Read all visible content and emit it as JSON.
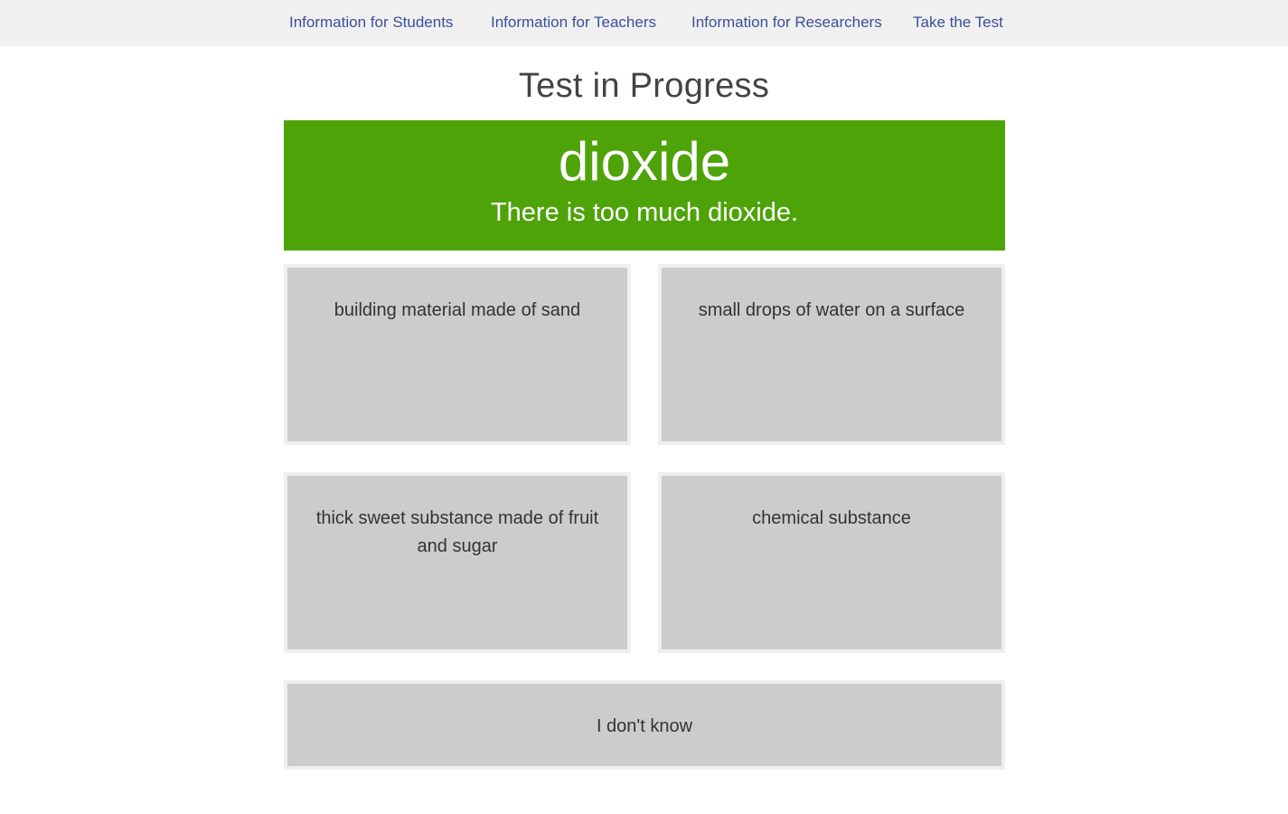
{
  "nav": {
    "items": [
      {
        "label": "Information for Students"
      },
      {
        "label": "Information for Teachers"
      },
      {
        "label": "Information for Researchers"
      },
      {
        "label": "Take the Test"
      }
    ]
  },
  "page": {
    "title": "Test in Progress"
  },
  "question": {
    "word": "dioxide",
    "example": "There is too much dioxide.",
    "banner_color": "#4ea309"
  },
  "choices": [
    {
      "label": "building material made of sand"
    },
    {
      "label": "small drops of water on a surface"
    },
    {
      "label": "thick sweet substance made of fruit and sugar"
    },
    {
      "label": "chemical substance"
    }
  ],
  "dont_know": {
    "label": "I don't know"
  },
  "colors": {
    "nav_background": "#f0f0f0",
    "nav_link": "#3a4f9a",
    "choice_background": "#cccccc",
    "choice_border": "#efefef"
  }
}
